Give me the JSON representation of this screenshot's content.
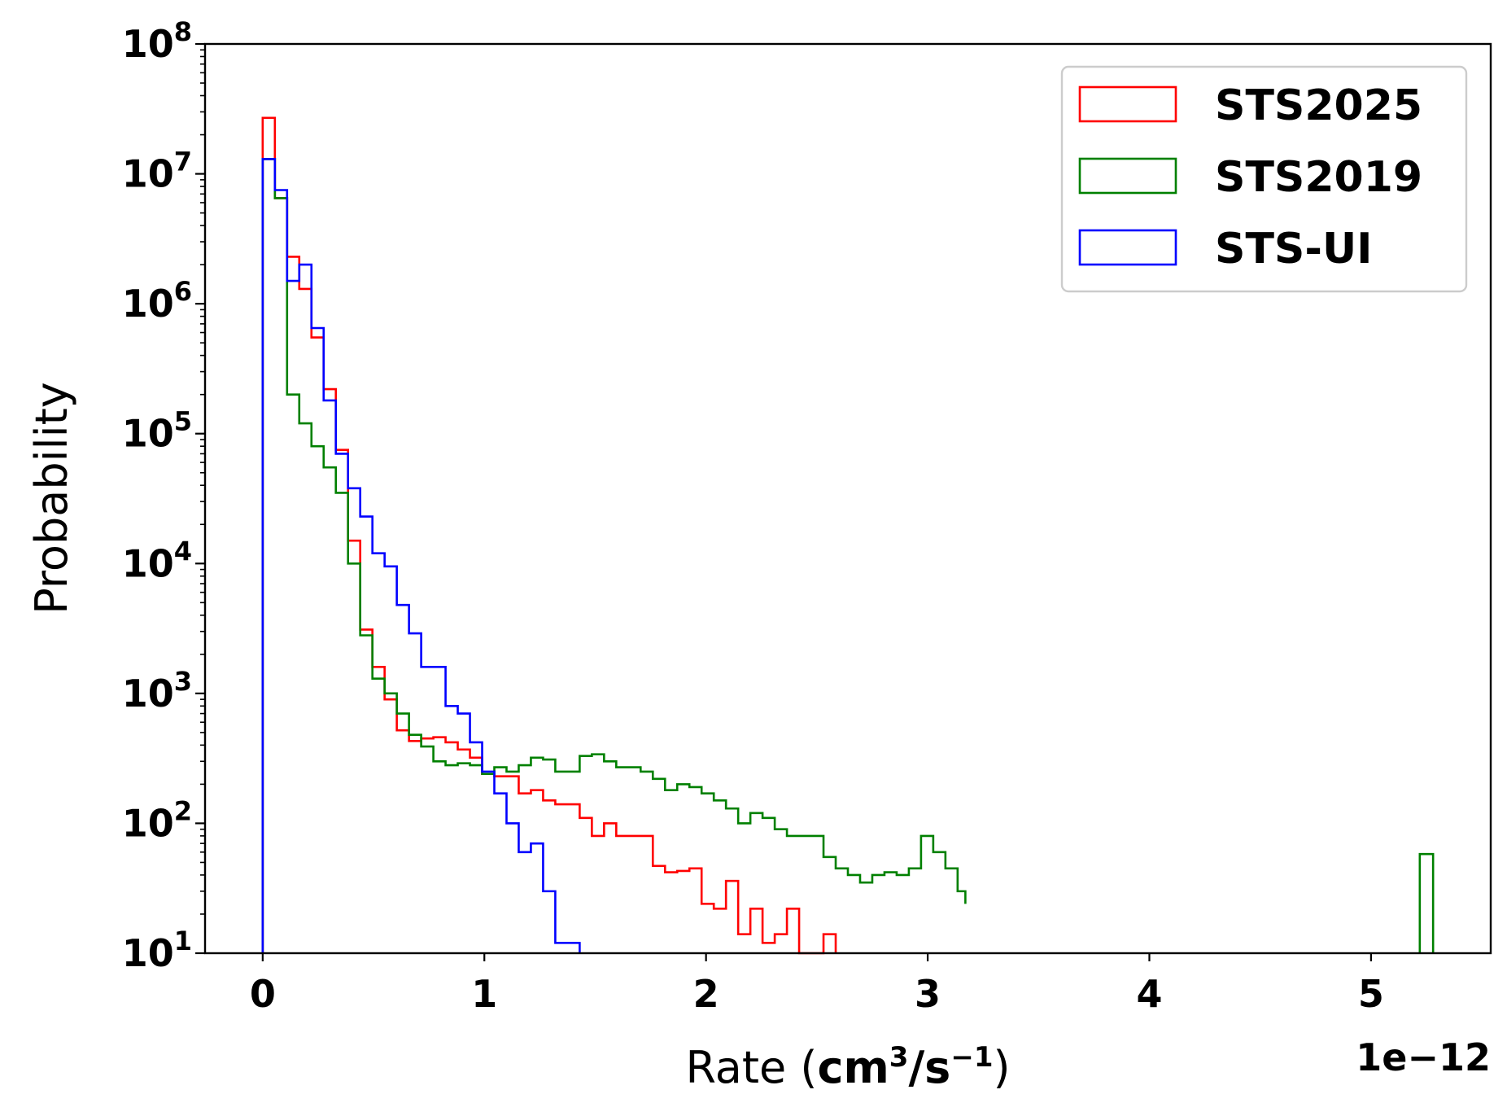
{
  "chart_data": {
    "type": "histogram-step",
    "title": "",
    "xlabel_prefix": "Rate (",
    "xlabel_bold_base": "cm",
    "xlabel_bold_sup1": "3",
    "xlabel_bold_mid": "/s",
    "xlabel_bold_sup2": "−1",
    "xlabel_suffix": ")",
    "ylabel": "Probability",
    "x_offset_label": "1e−12",
    "x_scale": 1e-12,
    "xlim": [
      -0.26,
      5.54
    ],
    "ylim": [
      10,
      100000000
    ],
    "yscale": "log",
    "x_ticks": [
      {
        "value": 0,
        "label": "0"
      },
      {
        "value": 1,
        "label": "1"
      },
      {
        "value": 2,
        "label": "2"
      },
      {
        "value": 3,
        "label": "3"
      },
      {
        "value": 4,
        "label": "4"
      },
      {
        "value": 5,
        "label": "5"
      }
    ],
    "y_ticks": [
      {
        "value": 10,
        "base": "10",
        "exp": "1"
      },
      {
        "value": 100,
        "base": "10",
        "exp": "2"
      },
      {
        "value": 1000,
        "base": "10",
        "exp": "3"
      },
      {
        "value": 10000,
        "base": "10",
        "exp": "4"
      },
      {
        "value": 100000,
        "base": "10",
        "exp": "5"
      },
      {
        "value": 1000000,
        "base": "10",
        "exp": "6"
      },
      {
        "value": 10000000,
        "base": "10",
        "exp": "7"
      },
      {
        "value": 100000000,
        "base": "10",
        "exp": "8"
      }
    ],
    "legend_position": "upper right",
    "series": [
      {
        "name": "STS2025",
        "color": "#ff0000",
        "edges": [
          0.0,
          0.055,
          0.11,
          0.165,
          0.22,
          0.275,
          0.33,
          0.385,
          0.44,
          0.495,
          0.55,
          0.605,
          0.66,
          0.715,
          0.77,
          0.825,
          0.88,
          0.935,
          0.99,
          1.045,
          1.1,
          1.155,
          1.21,
          1.265,
          1.32,
          1.375,
          1.43,
          1.485,
          1.54,
          1.595,
          1.65,
          1.705,
          1.76,
          1.815,
          1.87,
          1.925,
          1.98,
          2.035,
          2.09,
          2.145,
          2.2,
          2.255,
          2.31,
          2.365,
          2.42,
          2.475,
          2.53,
          2.585
        ],
        "counts": [
          27000000,
          6500000,
          2300000,
          1300000,
          550000,
          220000,
          75000,
          15000,
          3100,
          1600,
          900,
          520,
          430,
          450,
          460,
          420,
          370,
          320,
          240,
          230,
          230,
          170,
          180,
          150,
          140,
          140,
          110,
          80,
          100,
          80,
          80,
          80,
          47,
          42,
          43,
          45,
          24,
          22,
          36,
          14,
          22,
          12,
          14,
          22,
          10,
          10,
          14
        ],
        "floor_after": 10
      },
      {
        "name": "STS2019",
        "color": "#008000",
        "edges": [
          0.0,
          0.055,
          0.11,
          0.165,
          0.22,
          0.275,
          0.33,
          0.385,
          0.44,
          0.495,
          0.55,
          0.605,
          0.66,
          0.715,
          0.77,
          0.825,
          0.88,
          0.935,
          0.99,
          1.045,
          1.1,
          1.155,
          1.21,
          1.265,
          1.32,
          1.375,
          1.43,
          1.485,
          1.54,
          1.595,
          1.65,
          1.705,
          1.76,
          1.815,
          1.87,
          1.925,
          1.98,
          2.035,
          2.09,
          2.145,
          2.2,
          2.255,
          2.31,
          2.365,
          2.42,
          2.475,
          2.53,
          2.585,
          2.64,
          2.695,
          2.75,
          2.805,
          2.86,
          2.915,
          2.97,
          3.025,
          3.08,
          3.135,
          3.17
        ],
        "counts": [
          13000000,
          6500000,
          200000,
          120000,
          80000,
          55000,
          35000,
          10000,
          2800,
          1300,
          1000,
          700,
          480,
          390,
          300,
          280,
          290,
          280,
          240,
          270,
          250,
          280,
          320,
          310,
          250,
          250,
          330,
          340,
          300,
          270,
          270,
          250,
          220,
          180,
          200,
          190,
          170,
          150,
          130,
          100,
          120,
          110,
          90,
          80,
          80,
          80,
          55,
          45,
          40,
          35,
          40,
          42,
          40,
          45,
          80,
          60,
          45,
          30,
          24
        ],
        "outlier": {
          "left": 5.22,
          "right": 5.28,
          "count": 58
        },
        "floor_after": 10
      },
      {
        "name": "STS-UI",
        "color": "#0000ff",
        "edges": [
          0.0,
          0.055,
          0.11,
          0.165,
          0.22,
          0.275,
          0.33,
          0.385,
          0.44,
          0.495,
          0.55,
          0.605,
          0.66,
          0.715,
          0.77,
          0.825,
          0.88,
          0.935,
          0.99,
          1.045,
          1.1,
          1.155,
          1.21,
          1.265,
          1.32,
          1.375,
          1.43
        ],
        "counts": [
          13000000,
          7500000,
          1500000,
          2000000,
          650000,
          180000,
          70000,
          38000,
          23000,
          12000,
          9500,
          4800,
          2900,
          1600,
          1600,
          800,
          700,
          420,
          250,
          170,
          100,
          60,
          70,
          30,
          12,
          12
        ],
        "floor_after": 10
      }
    ]
  }
}
